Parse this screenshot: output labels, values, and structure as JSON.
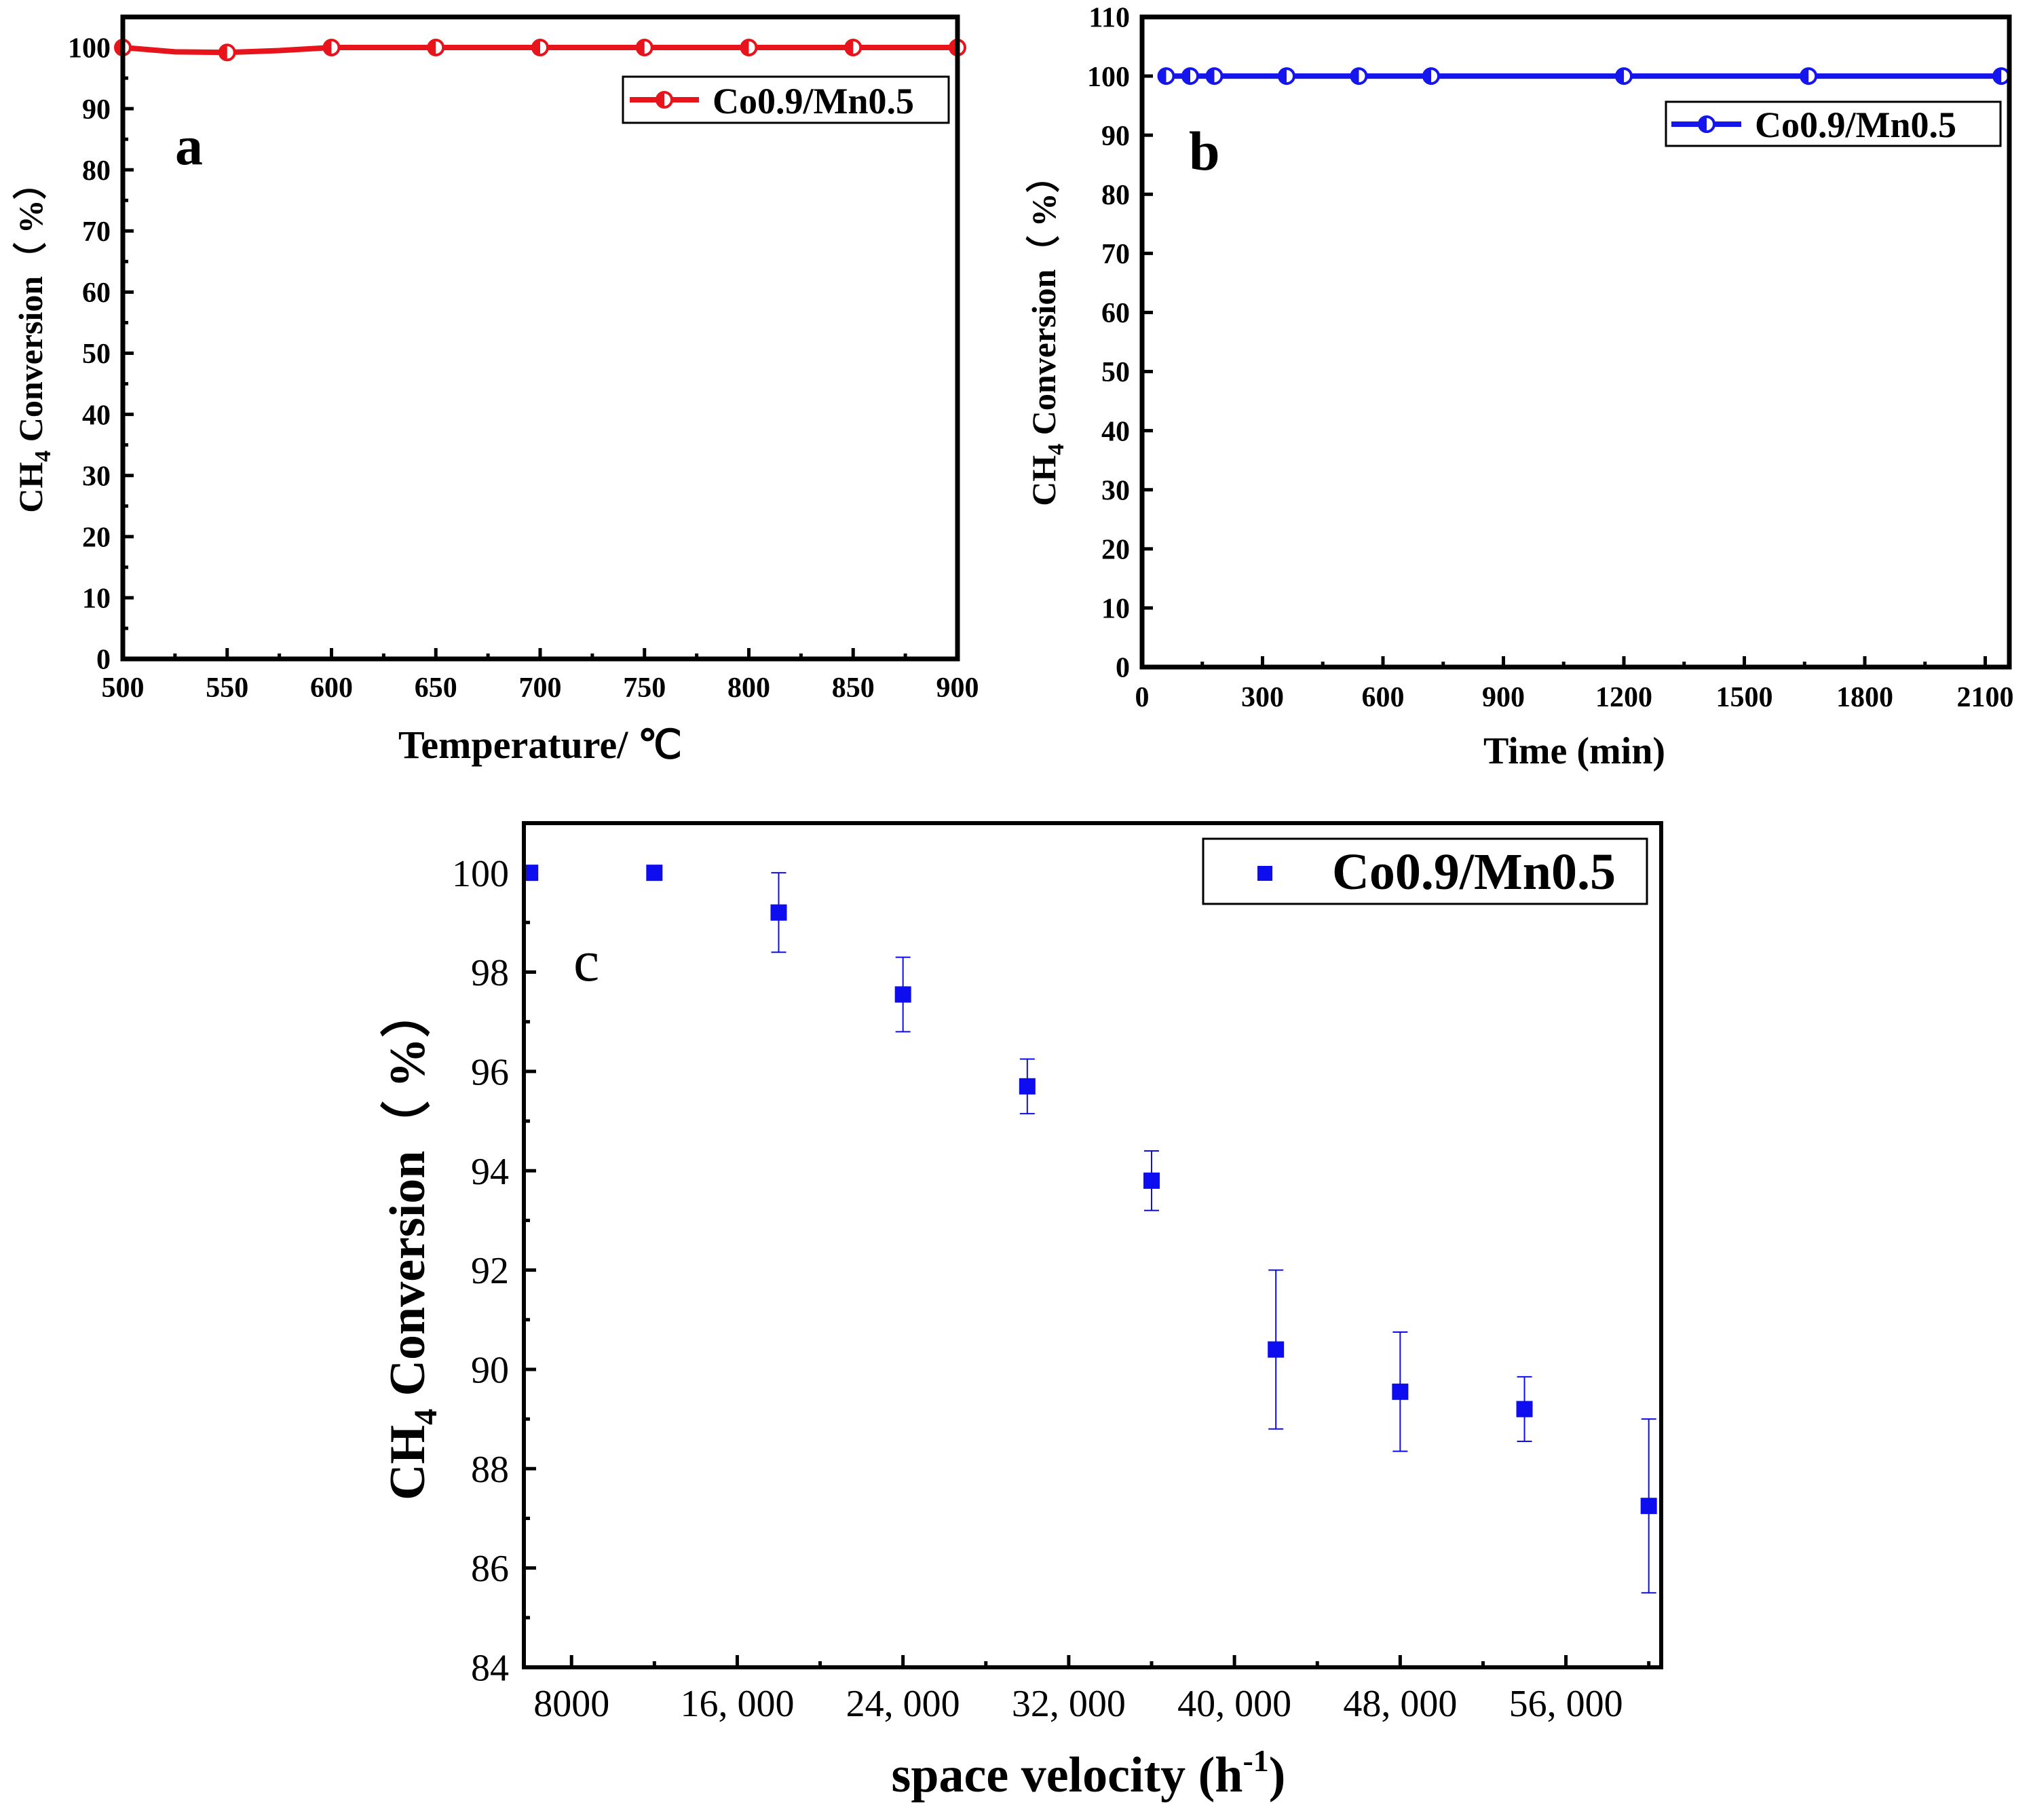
{
  "chart_data": [
    {
      "panel": "a",
      "type": "line",
      "xlabel": "Temperature/ ℃",
      "ylabel": "CH4 Conversion（ %）",
      "ylabel_parts": {
        "pre": "CH",
        "sub": "4",
        "post": " Conversion（ %）"
      },
      "xlim": [
        500,
        900
      ],
      "ylim": [
        0,
        105
      ],
      "xticks": [
        500,
        550,
        600,
        650,
        700,
        750,
        800,
        850,
        900
      ],
      "yticks": [
        0,
        10,
        20,
        30,
        40,
        50,
        60,
        70,
        80,
        90,
        100
      ],
      "series": [
        {
          "name": "Co0.9/Mn0.5",
          "color": "#e8141b",
          "marker": "half-filled-circle",
          "x": [
            500,
            525,
            550,
            575,
            600,
            650,
            700,
            750,
            800,
            850,
            900
          ],
          "y": [
            100,
            99.3,
            99.2,
            99.5,
            100,
            100,
            100,
            100,
            100,
            100,
            100
          ],
          "marker_x": [
            500,
            550,
            600,
            650,
            700,
            750,
            800,
            850,
            900
          ]
        }
      ]
    },
    {
      "panel": "b",
      "type": "line",
      "xlabel": "Time (min)",
      "ylabel": "CH4 Conversion（ %）",
      "ylabel_parts": {
        "pre": "CH",
        "sub": "4",
        "post": " Conversion（ %）"
      },
      "xlim": [
        0,
        2160
      ],
      "ylim": [
        0,
        110
      ],
      "xticks": [
        0,
        300,
        600,
        900,
        1200,
        1500,
        1800,
        2100
      ],
      "yticks": [
        0,
        10,
        20,
        30,
        40,
        50,
        60,
        70,
        80,
        90,
        100,
        110
      ],
      "series": [
        {
          "name": "Co0.9/Mn0.5",
          "color": "#1515ee",
          "marker": "half-filled-circle",
          "x": [
            60,
            120,
            180,
            360,
            540,
            720,
            1200,
            1660,
            2140
          ],
          "y": [
            100,
            100,
            100,
            100,
            100,
            100,
            100,
            100,
            100
          ]
        }
      ]
    },
    {
      "panel": "c",
      "type": "scatter",
      "xlabel_parts": {
        "pre": "space velocity (h",
        "sup": "-1",
        "post": ")"
      },
      "ylabel_parts": {
        "pre": "CH",
        "sub": "4",
        "post": " Conversion（ %）"
      },
      "xlim": [
        5700,
        60600
      ],
      "ylim": [
        84,
        101
      ],
      "xticks": [
        8000,
        16000,
        24000,
        32000,
        40000,
        48000,
        56000
      ],
      "xtick_labels": [
        "8000",
        "16, 000",
        "24, 000",
        "32, 000",
        "40, 000",
        "48, 000",
        "56, 000"
      ],
      "yticks": [
        84,
        86,
        88,
        90,
        92,
        94,
        96,
        98,
        100
      ],
      "series": [
        {
          "name": "Co0.9/Mn0.5",
          "color": "#0d0df0",
          "marker": "square",
          "x": [
            6000,
            12000,
            18000,
            24000,
            30000,
            36000,
            42000,
            48000,
            54000,
            60000
          ],
          "y": [
            100,
            100,
            99.2,
            97.55,
            95.7,
            93.8,
            90.4,
            89.55,
            89.2,
            87.25
          ],
          "err": [
            0,
            0,
            0.8,
            0.75,
            0.55,
            0.6,
            1.6,
            1.2,
            0.65,
            1.75
          ]
        }
      ]
    }
  ],
  "panels": {
    "a": {
      "letter": "a",
      "legend": "Co0.9/Mn0.5"
    },
    "b": {
      "letter": "b",
      "legend": "Co0.9/Mn0.5"
    },
    "c": {
      "letter": "c",
      "legend": "Co0.9/Mn0.5"
    }
  }
}
